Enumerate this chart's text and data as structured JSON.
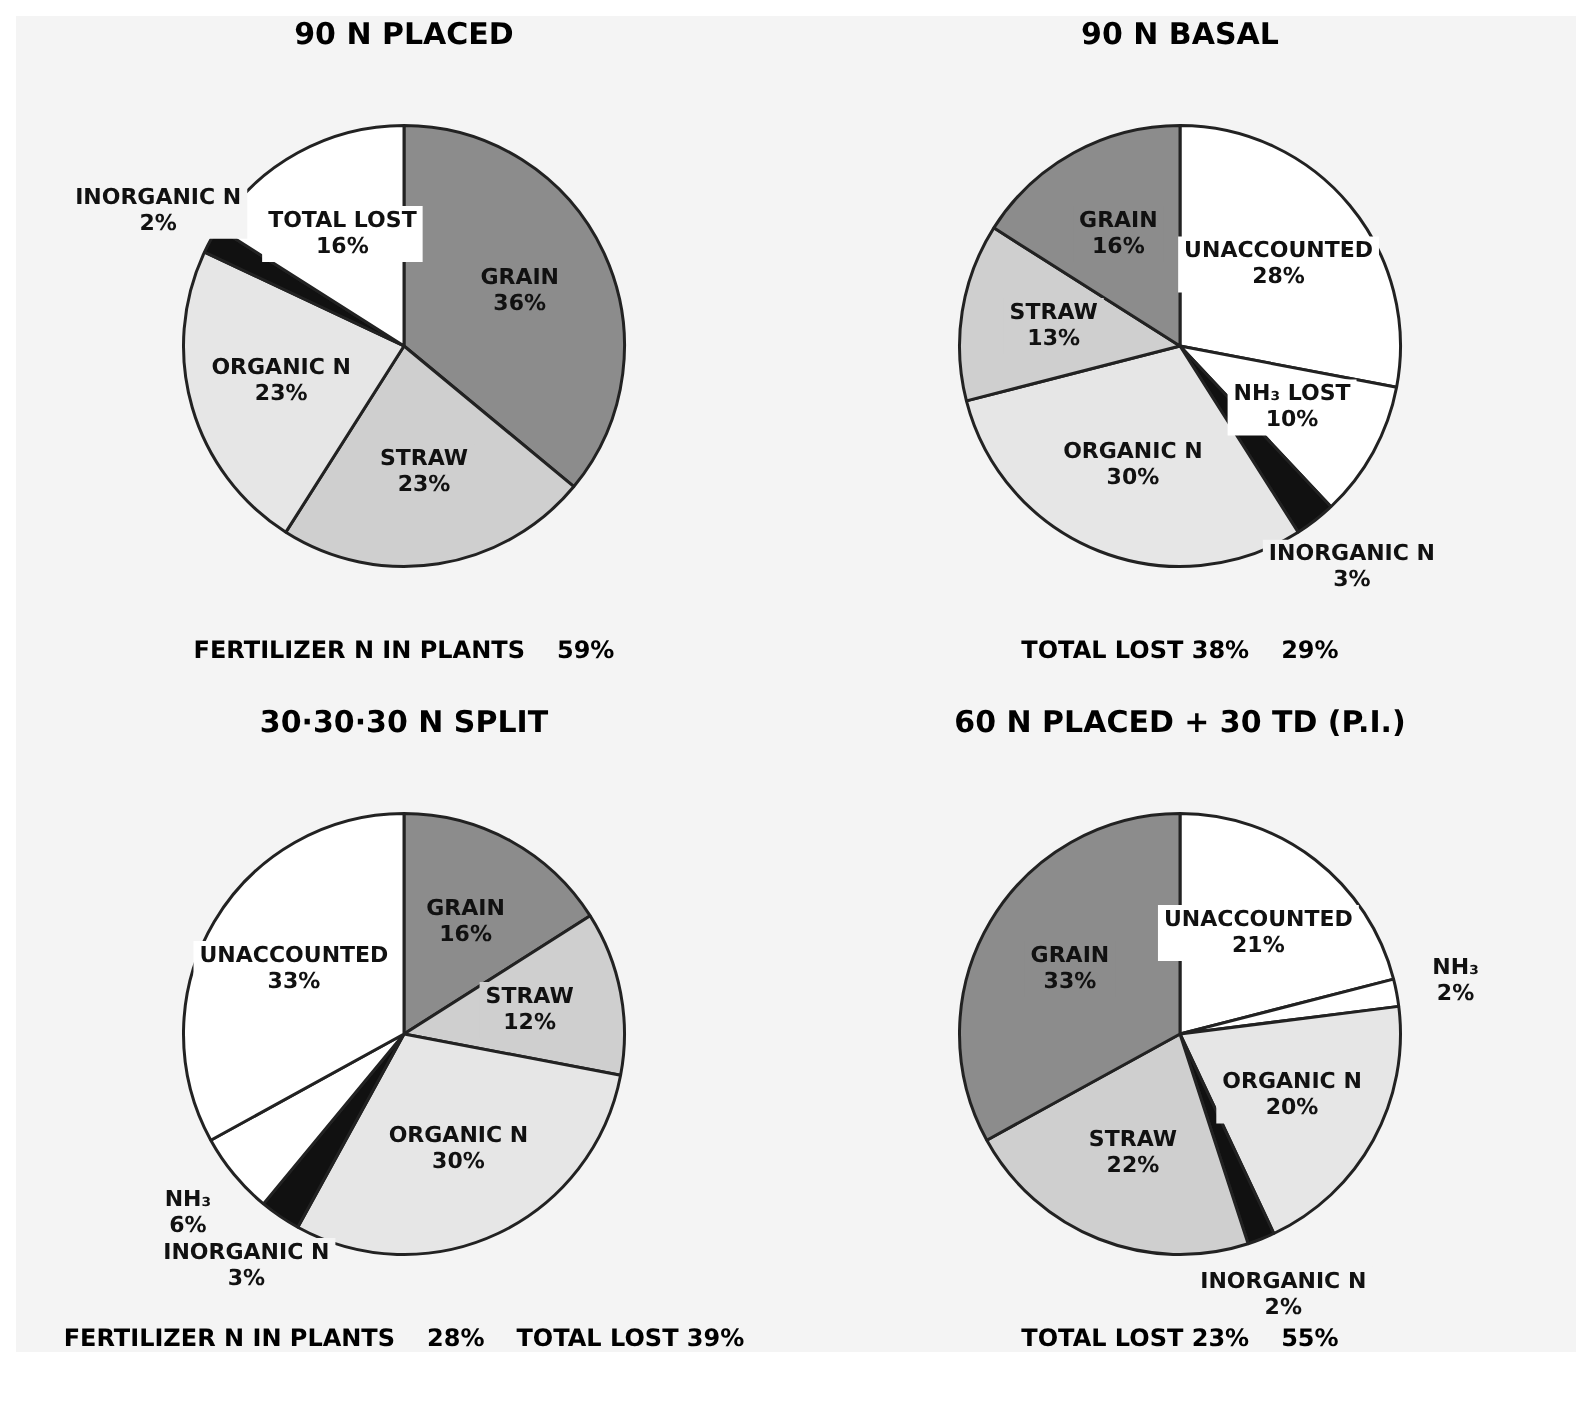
{
  "chart_data": [
    {
      "type": "pie",
      "title": "90 N PLACED",
      "categories": [
        "GRAIN",
        "STRAW",
        "ORGANIC N",
        "INORGANIC N",
        "TOTAL LOST"
      ],
      "values": [
        36,
        23,
        23,
        2,
        16
      ],
      "value_labels": [
        "36%",
        "23%",
        "23%",
        "2%",
        "16%"
      ],
      "colors": [
        "#8c8c8c",
        "#cfcfcf",
        "#e6e6e6",
        "#111111",
        "#ffffff"
      ],
      "legend": false,
      "annotations": [
        "FERTILIZER N IN PLANTS",
        "59%"
      ]
    },
    {
      "type": "pie",
      "title": "90 N BASAL",
      "categories": [
        "UNACCOUNTED",
        "NH₃ LOST",
        "INORGANIC N",
        "ORGANIC N",
        "STRAW",
        "GRAIN"
      ],
      "values": [
        28,
        10,
        3,
        30,
        13,
        16
      ],
      "value_labels": [
        "28%",
        "10%",
        "3%",
        "30%",
        "13%",
        "16%"
      ],
      "colors": [
        "#ffffff",
        "#ffffff",
        "#111111",
        "#e6e6e6",
        "#cfcfcf",
        "#8c8c8c"
      ],
      "legend": false,
      "annotations": [
        "TOTAL LOST 38%",
        "29%"
      ]
    },
    {
      "type": "pie",
      "title": "30·30·30 N SPLIT",
      "categories": [
        "GRAIN",
        "STRAW",
        "ORGANIC N",
        "INORGANIC N",
        "NH₃",
        "UNACCOUNTED"
      ],
      "values": [
        16,
        12,
        30,
        3,
        6,
        33
      ],
      "value_labels": [
        "16%",
        "12%",
        "30%",
        "3%",
        "6%",
        "33%"
      ],
      "colors": [
        "#8c8c8c",
        "#cfcfcf",
        "#e6e6e6",
        "#111111",
        "#ffffff",
        "#ffffff"
      ],
      "legend": false,
      "annotations": [
        "FERTILIZER N IN PLANTS",
        "28%",
        "TOTAL LOST 39%"
      ]
    },
    {
      "type": "pie",
      "title": "60 N PLACED + 30 TD (P.I.)",
      "categories": [
        "UNACCOUNTED",
        "NH₃",
        "ORGANIC N",
        "INORGANIC N",
        "STRAW",
        "GRAIN"
      ],
      "values": [
        21,
        2,
        20,
        2,
        22,
        33
      ],
      "value_labels": [
        "21%",
        "2%",
        "20%",
        "2%",
        "22%",
        "33%"
      ],
      "colors": [
        "#ffffff",
        "#ffffff",
        "#e6e6e6",
        "#111111",
        "#cfcfcf",
        "#8c8c8c"
      ],
      "legend": false,
      "annotations": [
        "TOTAL LOST 23%",
        "55%"
      ]
    }
  ]
}
